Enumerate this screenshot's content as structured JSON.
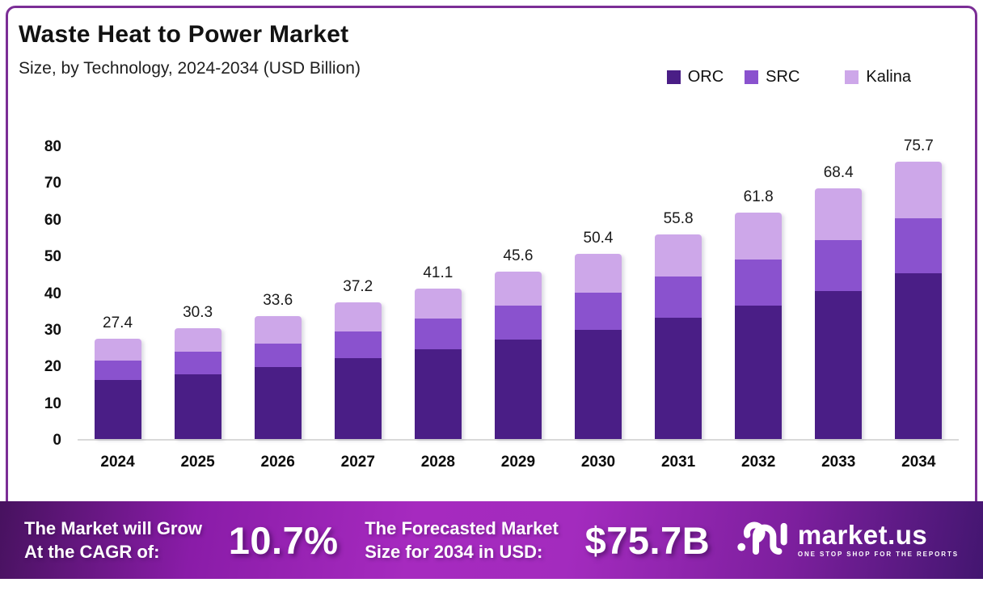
{
  "header": {
    "title": "Waste Heat to Power Market",
    "subtitle": "Size, by Technology, 2024-2034 (USD Billion)"
  },
  "legend": {
    "items": [
      {
        "label": "ORC",
        "color": "#4a1e86"
      },
      {
        "label": "SRC",
        "color": "#8a52ce"
      },
      {
        "label": "Kalina",
        "color": "#cda7e9"
      }
    ]
  },
  "chart_data": {
    "type": "bar",
    "stacked": true,
    "title": "Waste Heat to Power Market",
    "subtitle": "Size, by Technology, 2024-2034 (USD Billion)",
    "xlabel": "",
    "ylabel": "USD Billion",
    "ylim": [
      0,
      80
    ],
    "yticks": [
      0,
      10,
      20,
      30,
      40,
      50,
      60,
      70,
      80
    ],
    "grid": false,
    "legend_position": "top-right",
    "categories": [
      "2024",
      "2025",
      "2026",
      "2027",
      "2028",
      "2029",
      "2030",
      "2031",
      "2032",
      "2033",
      "2034"
    ],
    "series": [
      {
        "name": "ORC",
        "color": "#4a1e86",
        "values": [
          16.0,
          17.7,
          19.6,
          22.0,
          24.5,
          27.1,
          29.8,
          33.1,
          36.4,
          40.3,
          45.2
        ]
      },
      {
        "name": "SRC",
        "color": "#8a52ce",
        "values": [
          5.4,
          6.1,
          6.5,
          7.3,
          8.3,
          9.3,
          10.1,
          11.2,
          12.5,
          13.9,
          15.0
        ]
      },
      {
        "name": "Kalina",
        "color": "#cda7e9",
        "values": [
          6.0,
          6.5,
          7.5,
          7.9,
          8.3,
          9.2,
          10.5,
          11.5,
          12.9,
          14.2,
          15.5
        ]
      }
    ],
    "totals": [
      27.4,
      30.3,
      33.6,
      37.2,
      41.1,
      45.6,
      50.4,
      55.8,
      61.8,
      68.4,
      75.7
    ]
  },
  "footer": {
    "cagr_label_line1": "The Market will Grow",
    "cagr_label_line2": "At the CAGR of:",
    "cagr_value": "10.7%",
    "forecast_label_line1": "The Forecasted Market",
    "forecast_label_line2": "Size for 2034 in USD:",
    "forecast_value": "$75.7B",
    "brand": {
      "name": "market.us",
      "tagline": "ONE STOP SHOP FOR THE REPORTS"
    }
  },
  "colors": {
    "frame_border": "#7b2e96",
    "banner_gradient": [
      "#47125f",
      "#a62abf",
      "#431670"
    ],
    "axis_baseline": "#d9d9d9"
  }
}
